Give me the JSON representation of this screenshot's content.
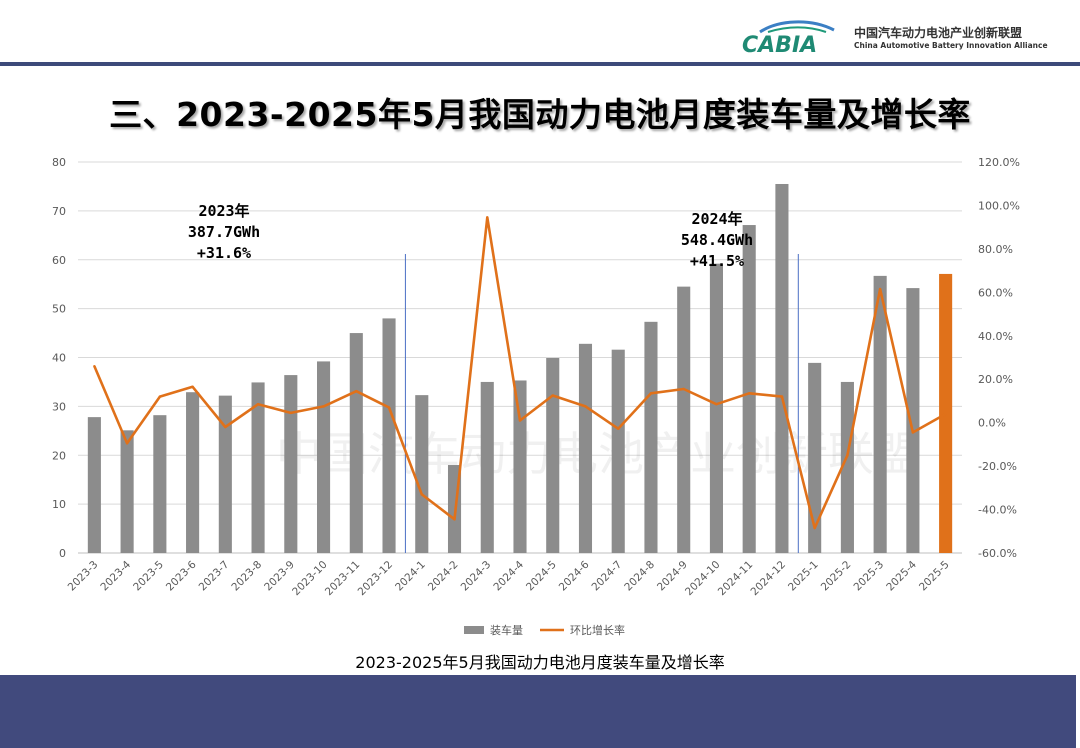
{
  "header": {
    "logo_text": "CABIA",
    "org_name_cn": "中国汽车动力电池产业创新联盟",
    "org_name_en": "China Automotive Battery Innovation Alliance"
  },
  "slide_title": "三、2023-2025年5月我国动力电池月度装车量及增长率",
  "caption": "2023-2025年5月我国动力电池月度装车量及增长率",
  "watermark": "中国汽车动力电池产业创新联盟",
  "colors": {
    "bar": "#8c8c8c",
    "bar_highlight": "#e0711a",
    "line": "#e0711a",
    "header_line": "#3d4a7a",
    "footer": "#414a7d",
    "divider": "#4a6fc4"
  },
  "chart_data": {
    "type": "bar",
    "categories": [
      "2023-3",
      "2023-4",
      "2023-5",
      "2023-6",
      "2023-7",
      "2023-8",
      "2023-9",
      "2023-10",
      "2023-11",
      "2023-12",
      "2024-1",
      "2024-2",
      "2024-3",
      "2024-4",
      "2024-5",
      "2024-6",
      "2024-7",
      "2024-8",
      "2024-9",
      "2024-10",
      "2024-11",
      "2024-12",
      "2025-1",
      "2025-2",
      "2025-3",
      "2025-4",
      "2025-5"
    ],
    "series": [
      {
        "name": "装车量",
        "type": "bar",
        "axis": "left",
        "values": [
          27.8,
          25.1,
          28.2,
          32.9,
          32.2,
          34.9,
          36.4,
          39.2,
          45.0,
          48.0,
          32.3,
          18.0,
          35.0,
          35.3,
          39.9,
          42.8,
          41.6,
          47.3,
          54.5,
          59.2,
          67.1,
          75.5,
          38.9,
          35.0,
          56.7,
          54.2,
          57.1
        ]
      },
      {
        "name": "环比增长率",
        "type": "line",
        "axis": "right",
        "values": [
          26.0,
          -9.5,
          12.0,
          16.5,
          -2.0,
          8.5,
          4.5,
          7.5,
          14.5,
          7.0,
          -33.0,
          -44.5,
          94.5,
          1.0,
          12.5,
          7.5,
          -2.8,
          13.5,
          15.5,
          8.5,
          13.5,
          12.0,
          -48.5,
          -15.0,
          61.5,
          -4.5,
          4.0
        ]
      }
    ],
    "yaxis_left": {
      "min": 0,
      "max": 80,
      "ticks": [
        "80",
        "70",
        "60",
        "50",
        "40",
        "30",
        "20",
        "10",
        "0"
      ]
    },
    "yaxis_right": {
      "min": -60,
      "max": 120,
      "ticks": [
        "120.0%",
        "100.0%",
        "80.0%",
        "60.0%",
        "40.0%",
        "20.0%",
        "0.0%",
        "-20.0%",
        "-40.0%",
        "-60.0%"
      ]
    },
    "highlight_category": "2025-5",
    "year_dividers_after": [
      "2023-12",
      "2024-12"
    ],
    "grid": true,
    "legend_position": "bottom",
    "annotations": [
      {
        "lines": [
          "2023年",
          "387.7GWh",
          "+31.6%"
        ]
      },
      {
        "lines": [
          "2024年",
          "548.4GWh",
          "+41.5%"
        ]
      }
    ]
  }
}
